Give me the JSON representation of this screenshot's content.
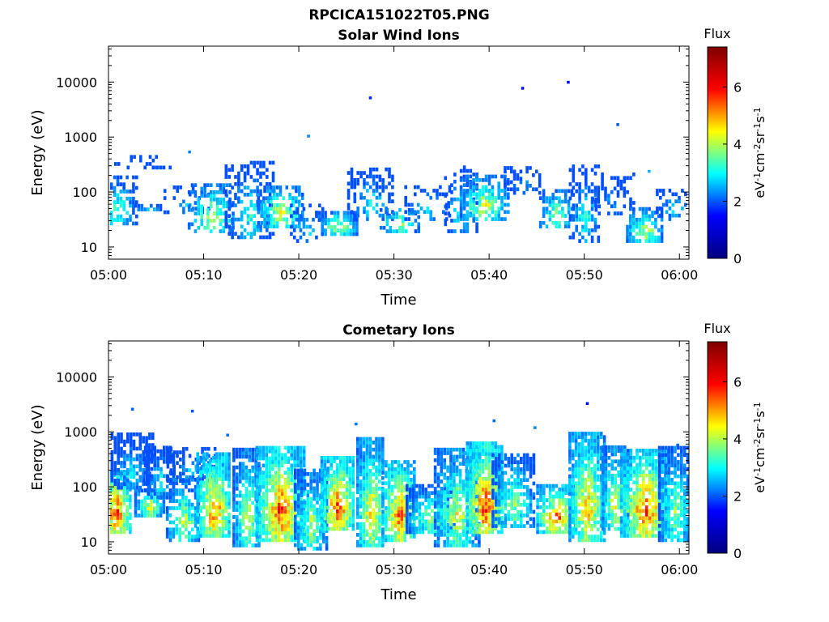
{
  "figure": {
    "title": "RPCICA151022T05.PNG"
  },
  "colorbar": {
    "label": "Flux",
    "unit_base": [
      "eV",
      "cm",
      "sr",
      "s"
    ],
    "unit_exp": [
      "-1",
      "-2",
      "-1",
      "-1"
    ],
    "colormap": "jet",
    "colormap_stops": [
      "#00007f",
      "#0000ff",
      "#00ffff",
      "#ffff00",
      "#ff0000",
      "#7f0000"
    ],
    "range": [
      0,
      7.4
    ],
    "ticks": [
      0,
      2,
      4,
      6
    ],
    "tick_labels": [
      "0",
      "2",
      "4",
      "6"
    ]
  },
  "chart_data": [
    {
      "type": "heatmap",
      "title": "Solar Wind Ions",
      "xlabel": "Time",
      "ylabel": "Energy (eV)",
      "yscale": "log",
      "ylim": [
        6,
        45000
      ],
      "xlim": [
        "05:00",
        "06:01"
      ],
      "xticks": [
        "05:00",
        "05:10",
        "05:20",
        "05:30",
        "05:40",
        "05:50",
        "06:00"
      ],
      "yticks": [
        10,
        100,
        1000,
        10000
      ],
      "ytick_labels": [
        "10",
        "100",
        "1000",
        "10000"
      ],
      "grid": false,
      "bursts": [
        {
          "t": 0.7,
          "emin": 25,
          "emax": 180,
          "peak": 3.6,
          "density": 0.55
        },
        {
          "t": 2.5,
          "emin": 260,
          "emax": 450,
          "peak": 2.0,
          "density": 0.25
        },
        {
          "t": 4.0,
          "emin": 45,
          "emax": 55,
          "peak": 3.0,
          "density": 0.5
        },
        {
          "t": 5.0,
          "emin": 260,
          "emax": 290,
          "peak": 1.9,
          "density": 0.5
        },
        {
          "t": 8.0,
          "emin": 40,
          "emax": 120,
          "peak": 2.5,
          "density": 0.2
        },
        {
          "t": 10.8,
          "emin": 18,
          "emax": 130,
          "peak": 4.4,
          "density": 0.5
        },
        {
          "t": 14.7,
          "emin": 14,
          "emax": 320,
          "peak": 3.2,
          "density": 0.45
        },
        {
          "t": 18.0,
          "emin": 22,
          "emax": 130,
          "peak": 4.6,
          "density": 0.65
        },
        {
          "t": 20.8,
          "emin": 12,
          "emax": 60,
          "peak": 2.8,
          "density": 0.3
        },
        {
          "t": 24.0,
          "emin": 16,
          "emax": 42,
          "peak": 4.4,
          "density": 0.75
        },
        {
          "t": 27.4,
          "emin": 30,
          "emax": 270,
          "peak": 3.0,
          "density": 0.45
        },
        {
          "t": 30.5,
          "emin": 18,
          "emax": 50,
          "peak": 4.0,
          "density": 0.5
        },
        {
          "t": 33.5,
          "emin": 30,
          "emax": 120,
          "peak": 2.9,
          "density": 0.3
        },
        {
          "t": 37.0,
          "emin": 18,
          "emax": 300,
          "peak": 3.1,
          "density": 0.35
        },
        {
          "t": 39.4,
          "emin": 30,
          "emax": 180,
          "peak": 4.6,
          "density": 0.65
        },
        {
          "t": 43.5,
          "emin": 90,
          "emax": 280,
          "peak": 2.3,
          "density": 0.35
        },
        {
          "t": 47.0,
          "emin": 22,
          "emax": 110,
          "peak": 4.0,
          "density": 0.55
        },
        {
          "t": 50.0,
          "emin": 12,
          "emax": 280,
          "peak": 3.1,
          "density": 0.4
        },
        {
          "t": 53.0,
          "emin": 38,
          "emax": 220,
          "peak": 2.2,
          "density": 0.3
        },
        {
          "t": 56.3,
          "emin": 12,
          "emax": 50,
          "peak": 4.4,
          "density": 0.65
        },
        {
          "t": 59.5,
          "emin": 30,
          "emax": 110,
          "peak": 2.8,
          "density": 0.35
        }
      ],
      "isolated_points": [
        {
          "t": 8.5,
          "e": 540,
          "v": 1.9
        },
        {
          "t": 21.0,
          "e": 1050,
          "v": 1.9
        },
        {
          "t": 27.5,
          "e": 5200,
          "v": 1.2
        },
        {
          "t": 43.5,
          "e": 7800,
          "v": 1.0
        },
        {
          "t": 48.3,
          "e": 10000,
          "v": 0.9
        },
        {
          "t": 53.5,
          "e": 1700,
          "v": 1.5
        },
        {
          "t": 56.8,
          "e": 240,
          "v": 2.2
        }
      ]
    },
    {
      "type": "heatmap",
      "title": "Cometary Ions",
      "xlabel": "Time",
      "ylabel": "Energy (eV)",
      "yscale": "log",
      "ylim": [
        6,
        45000
      ],
      "xlim": [
        "05:00",
        "06:01"
      ],
      "xticks": [
        "05:00",
        "05:10",
        "05:20",
        "05:30",
        "05:40",
        "05:50",
        "06:00"
      ],
      "yticks": [
        10,
        100,
        1000,
        10000
      ],
      "ytick_labels": [
        "10",
        "100",
        "1000",
        "10000"
      ],
      "grid": false,
      "bursts": [
        {
          "t": 0.7,
          "emin": 14,
          "emax": 200,
          "peak": 6.4,
          "density": 0.9
        },
        {
          "t": 2.3,
          "emin": 90,
          "emax": 900,
          "peak": 2.8,
          "density": 0.7
        },
        {
          "t": 4.2,
          "emin": 28,
          "emax": 90,
          "peak": 4.6,
          "density": 0.85
        },
        {
          "t": 5.3,
          "emin": 60,
          "emax": 500,
          "peak": 3.0,
          "density": 0.6
        },
        {
          "t": 7.8,
          "emin": 10,
          "emax": 130,
          "peak": 4.4,
          "density": 0.75
        },
        {
          "t": 8.6,
          "emin": 120,
          "emax": 500,
          "peak": 2.5,
          "density": 0.5
        },
        {
          "t": 11.0,
          "emin": 12,
          "emax": 420,
          "peak": 6.0,
          "density": 0.85
        },
        {
          "t": 14.5,
          "emin": 8,
          "emax": 500,
          "peak": 4.4,
          "density": 0.75
        },
        {
          "t": 18.0,
          "emin": 10,
          "emax": 550,
          "peak": 6.2,
          "density": 0.85
        },
        {
          "t": 21.2,
          "emin": 7,
          "emax": 200,
          "peak": 4.2,
          "density": 0.8
        },
        {
          "t": 24.0,
          "emin": 16,
          "emax": 330,
          "peak": 6.4,
          "density": 0.9
        },
        {
          "t": 27.5,
          "emin": 8,
          "emax": 700,
          "peak": 5.2,
          "density": 0.85
        },
        {
          "t": 30.5,
          "emin": 10,
          "emax": 300,
          "peak": 6.0,
          "density": 0.85
        },
        {
          "t": 33.8,
          "emin": 14,
          "emax": 100,
          "peak": 4.2,
          "density": 0.75
        },
        {
          "t": 36.5,
          "emin": 8,
          "emax": 500,
          "peak": 4.6,
          "density": 0.8
        },
        {
          "t": 39.5,
          "emin": 14,
          "emax": 600,
          "peak": 6.6,
          "density": 0.9
        },
        {
          "t": 42.5,
          "emin": 18,
          "emax": 400,
          "peak": 4.0,
          "density": 0.7
        },
        {
          "t": 47.0,
          "emin": 14,
          "emax": 100,
          "peak": 6.0,
          "density": 0.85
        },
        {
          "t": 50.2,
          "emin": 10,
          "emax": 1000,
          "peak": 5.4,
          "density": 0.85
        },
        {
          "t": 53.2,
          "emin": 16,
          "emax": 500,
          "peak": 4.8,
          "density": 0.8
        },
        {
          "t": 56.3,
          "emin": 12,
          "emax": 450,
          "peak": 6.2,
          "density": 0.85
        },
        {
          "t": 59.5,
          "emin": 10,
          "emax": 550,
          "peak": 4.0,
          "density": 0.75
        }
      ],
      "isolated_points": [
        {
          "t": 2.5,
          "e": 2600,
          "v": 1.6
        },
        {
          "t": 8.8,
          "e": 2400,
          "v": 1.5
        },
        {
          "t": 12.5,
          "e": 880,
          "v": 1.7
        },
        {
          "t": 26.0,
          "e": 1400,
          "v": 1.8
        },
        {
          "t": 40.5,
          "e": 1600,
          "v": 1.7
        },
        {
          "t": 44.8,
          "e": 1200,
          "v": 1.9
        },
        {
          "t": 50.3,
          "e": 3300,
          "v": 1.0
        },
        {
          "t": 59.8,
          "e": 580,
          "v": 1.6
        }
      ]
    }
  ]
}
